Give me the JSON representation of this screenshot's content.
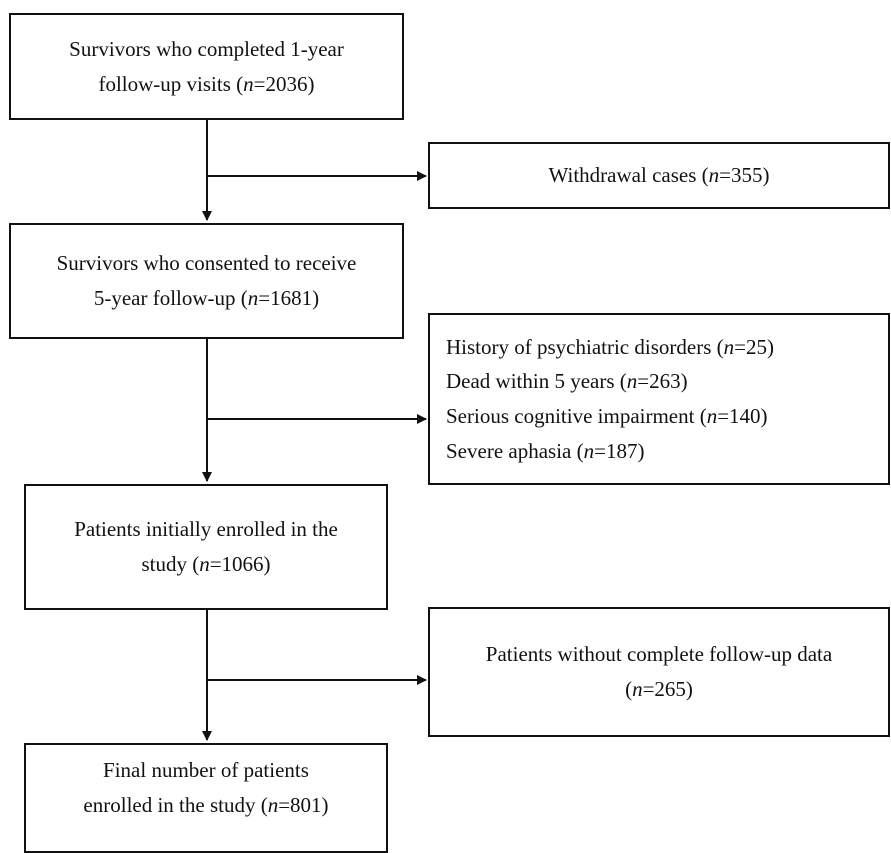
{
  "boxes": {
    "completed": {
      "line1": "Survivors who completed 1-year",
      "line2_pre": "follow-up visits (",
      "n_label": "n",
      "line2_post": "=2036)"
    },
    "withdrawal": {
      "pre": "Withdrawal cases (",
      "n_label": "n",
      "post": "=355)"
    },
    "consented": {
      "line1": "Survivors who consented to receive",
      "line2_pre": "5-year follow-up (",
      "n_label": "n",
      "line2_post": "=1681)"
    },
    "exclusions": {
      "items": [
        {
          "pre": "History of psychiatric disorders (",
          "n_label": "n",
          "post": "=25)"
        },
        {
          "pre": "Dead within 5 years (",
          "n_label": "n",
          "post": "=263)"
        },
        {
          "pre": "Serious cognitive impairment (",
          "n_label": "n",
          "post": "=140)"
        },
        {
          "pre": "Severe aphasia (",
          "n_label": "n",
          "post": "=187)"
        }
      ]
    },
    "initial": {
      "line1": "Patients initially enrolled in the",
      "line2_pre": "study (",
      "n_label": "n",
      "line2_post": "=1066)"
    },
    "incomplete": {
      "line1": "Patients without complete follow-up data",
      "line2_pre": "(",
      "n_label": "n",
      "line2_post": "=265)"
    },
    "final": {
      "line1": "Final number of patients",
      "line2_pre": "enrolled in the study (",
      "n_label": "n",
      "line2_post": "=801)"
    }
  }
}
